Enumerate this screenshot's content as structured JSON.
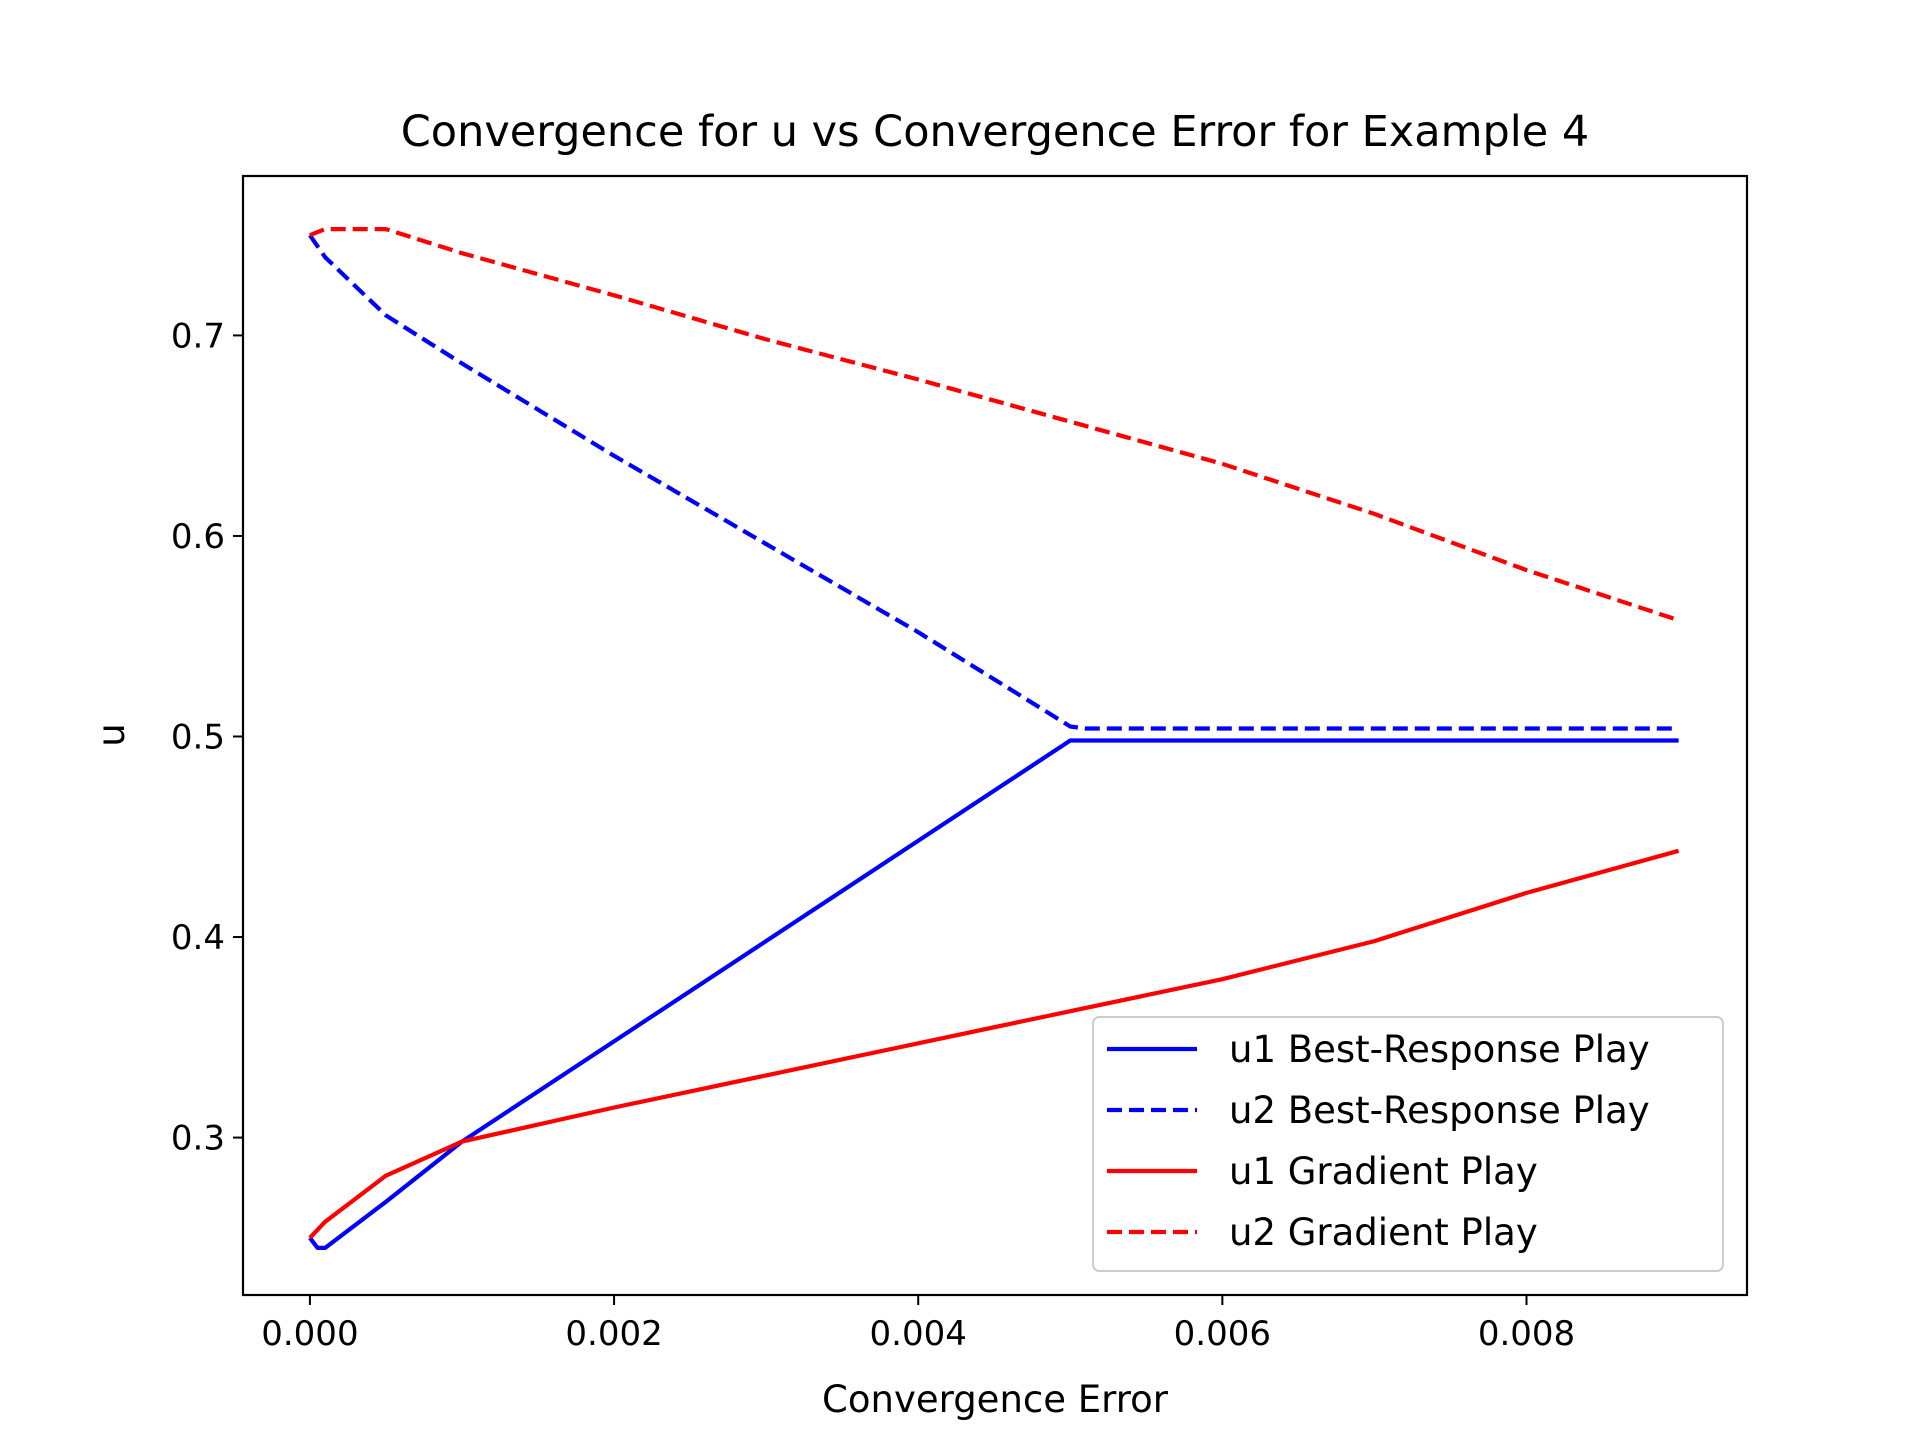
{
  "chart_data": {
    "type": "line",
    "title": "Convergence for u vs Convergence Error for Example 4",
    "xlabel": "Convergence Error",
    "ylabel": "u",
    "xlim": [
      -0.00044,
      0.00945
    ],
    "ylim": [
      0.2215,
      0.7795
    ],
    "xticks": [
      0.0,
      0.002,
      0.004,
      0.006,
      0.008
    ],
    "xtick_labels": [
      "0.000",
      "0.002",
      "0.004",
      "0.006",
      "0.008"
    ],
    "yticks": [
      0.3,
      0.4,
      0.5,
      0.6,
      0.7
    ],
    "ytick_labels": [
      "0.3",
      "0.4",
      "0.5",
      "0.6",
      "0.7"
    ],
    "grid": false,
    "legend_position": "lower-right",
    "series": [
      {
        "name": "u1 Best-Response Play",
        "color": "#0000ff",
        "style": "solid",
        "x": [
          0.0,
          5e-05,
          0.0001,
          0.0005,
          0.001,
          0.005,
          0.006,
          0.007,
          0.008,
          0.009
        ],
        "y": [
          0.25,
          0.245,
          0.245,
          0.268,
          0.298,
          0.498,
          0.498,
          0.498,
          0.498,
          0.498
        ]
      },
      {
        "name": "u2 Best-Response Play",
        "color": "#0000ff",
        "style": "dashed",
        "x": [
          0.0,
          0.0001,
          0.0005,
          0.001,
          0.002,
          0.003,
          0.004,
          0.005,
          0.0051,
          0.006,
          0.007,
          0.008,
          0.009
        ],
        "y": [
          0.75,
          0.739,
          0.71,
          0.686,
          0.64,
          0.596,
          0.552,
          0.505,
          0.504,
          0.504,
          0.504,
          0.504,
          0.504
        ]
      },
      {
        "name": "u1 Gradient Play",
        "color": "#ff0000",
        "style": "solid",
        "x": [
          0.0,
          0.0001,
          0.0005,
          0.001,
          0.002,
          0.003,
          0.004,
          0.005,
          0.006,
          0.007,
          0.008,
          0.009
        ],
        "y": [
          0.25,
          0.258,
          0.281,
          0.298,
          0.315,
          0.331,
          0.347,
          0.363,
          0.379,
          0.398,
          0.422,
          0.443
        ]
      },
      {
        "name": "u2 Gradient Play",
        "color": "#ff0000",
        "style": "dashed",
        "x": [
          0.0,
          0.0001,
          0.0005,
          0.001,
          0.002,
          0.003,
          0.004,
          0.005,
          0.006,
          0.007,
          0.008,
          0.009
        ],
        "y": [
          0.75,
          0.753,
          0.753,
          0.741,
          0.72,
          0.698,
          0.678,
          0.657,
          0.636,
          0.611,
          0.583,
          0.558
        ]
      }
    ]
  }
}
